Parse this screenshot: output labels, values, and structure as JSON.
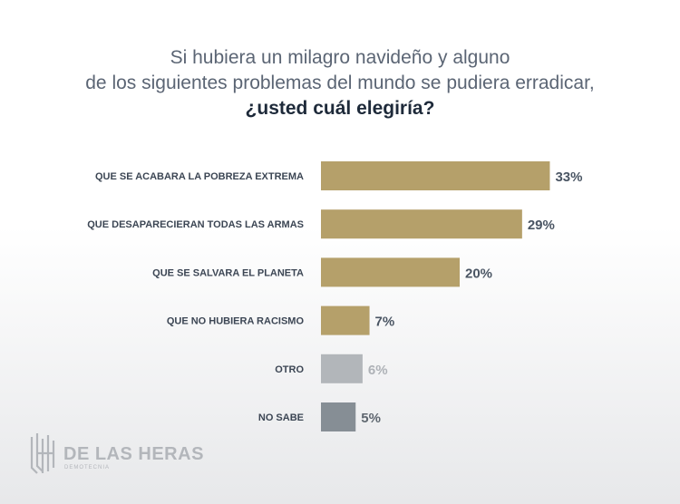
{
  "title": {
    "line1": "Si hubiera un milagro navideño y alguno",
    "line2": "de los siguientes problemas del mundo se pudiera erradicar,",
    "line3": "¿usted cuál elegiría?"
  },
  "chart_data": {
    "type": "bar",
    "orientation": "horizontal",
    "title": "Si hubiera un milagro navideño y alguno de los siguientes problemas del mundo se pudiera erradicar, ¿usted cuál elegiría?",
    "categories": [
      "QUE SE ACABARA LA POBREZA EXTREMA",
      "QUE DESAPARECIERAN TODAS LAS ARMAS",
      "QUE SE SALVARA EL PLANETA",
      "QUE NO HUBIERA RACISMO",
      "OTRO",
      "NO SABE"
    ],
    "values": [
      33,
      29,
      20,
      7,
      6,
      5
    ],
    "value_labels": [
      "33%",
      "29%",
      "20%",
      "7%",
      "6%",
      "5%"
    ],
    "bar_colors": [
      "#b5a06a",
      "#b5a06a",
      "#b5a06a",
      "#b5a06a",
      "#b2b6ba",
      "#868e95"
    ],
    "label_colors": [
      "#4a5563",
      "#4a5563",
      "#4a5563",
      "#4a5563",
      "#aeb2b7",
      "#5f6770"
    ],
    "unit": "%"
  },
  "logo": {
    "name": "DE LAS HERAS",
    "subtitle": "DEMOTECNIA",
    "color": "#b3b6bb"
  }
}
